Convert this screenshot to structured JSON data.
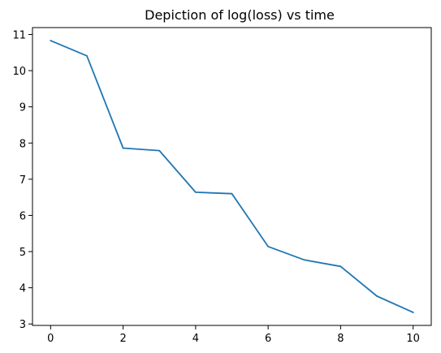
{
  "chart_data": {
    "type": "line",
    "title": "Depiction of log(loss) vs time",
    "xlabel": "",
    "ylabel": "",
    "x": [
      0,
      1,
      2,
      3,
      4,
      5,
      6,
      7,
      8,
      9,
      10
    ],
    "series": [
      {
        "values": [
          10.83,
          10.41,
          7.86,
          7.79,
          6.64,
          6.6,
          5.14,
          4.77,
          4.59,
          3.77,
          3.32
        ],
        "color": "#1f77b4"
      }
    ],
    "xlim": [
      -0.5,
      10.5
    ],
    "ylim": [
      2.96,
      11.19
    ],
    "x_ticks": [
      0,
      2,
      4,
      6,
      8,
      10
    ],
    "y_ticks": [
      3,
      4,
      5,
      6,
      7,
      8,
      9,
      10,
      11
    ],
    "grid": false,
    "legend": false
  }
}
